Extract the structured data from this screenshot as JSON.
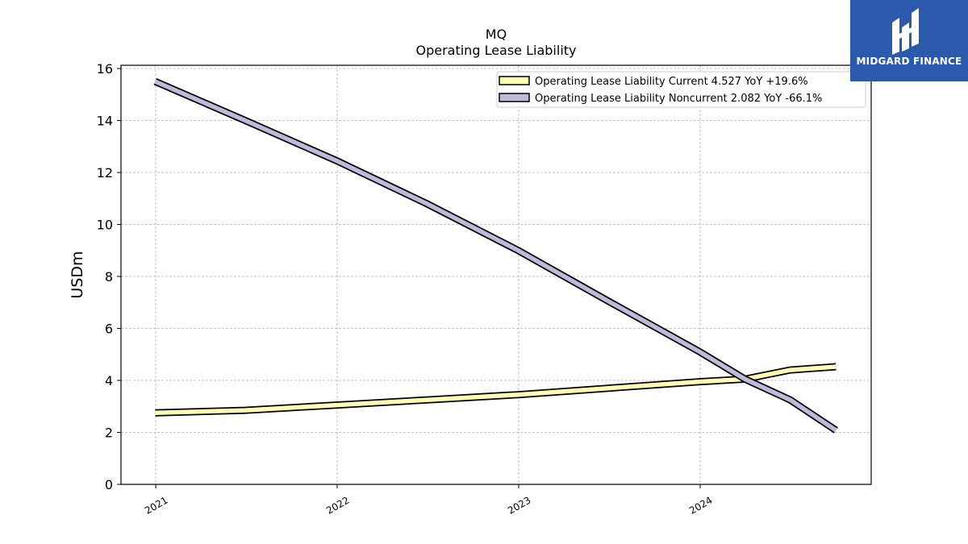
{
  "chart_data": {
    "type": "line",
    "title": "MQ",
    "subtitle": "Operating Lease Liability",
    "ylabel": "USDm",
    "xlabel": "",
    "ylim": [
      0,
      16
    ],
    "yticks": [
      0,
      2,
      4,
      6,
      8,
      10,
      12,
      14,
      16
    ],
    "xticks": [
      "2021",
      "2022",
      "2023",
      "2024"
    ],
    "grid": true,
    "legend_position": "top-right",
    "series": [
      {
        "name": "Operating Lease Liability Current  4.527 YoY +19.6%",
        "color": "#ffffb3",
        "x": [
          "2020-12-31",
          "2021-06-30",
          "2021-12-31",
          "2022-06-30",
          "2022-12-31",
          "2023-06-30",
          "2023-12-31",
          "2024-03-31",
          "2024-06-30",
          "2024-09-30"
        ],
        "values": [
          2.75,
          2.85,
          3.05,
          3.25,
          3.45,
          3.7,
          3.95,
          4.05,
          4.4,
          4.527
        ]
      },
      {
        "name": "Operating Lease Liability Noncurrent  2.082 YoY -66.1%",
        "color": "#bebada",
        "x": [
          "2020-12-31",
          "2021-06-30",
          "2021-12-31",
          "2022-06-30",
          "2022-12-31",
          "2023-06-30",
          "2023-12-31",
          "2024-03-31",
          "2024-06-30",
          "2024-09-30"
        ],
        "values": [
          15.5,
          14.0,
          12.45,
          10.8,
          9.0,
          7.05,
          5.1,
          4.05,
          3.25,
          2.082
        ]
      }
    ]
  },
  "logo": {
    "text": "MIDGARD FINANCE",
    "color": "#2b5aad"
  }
}
